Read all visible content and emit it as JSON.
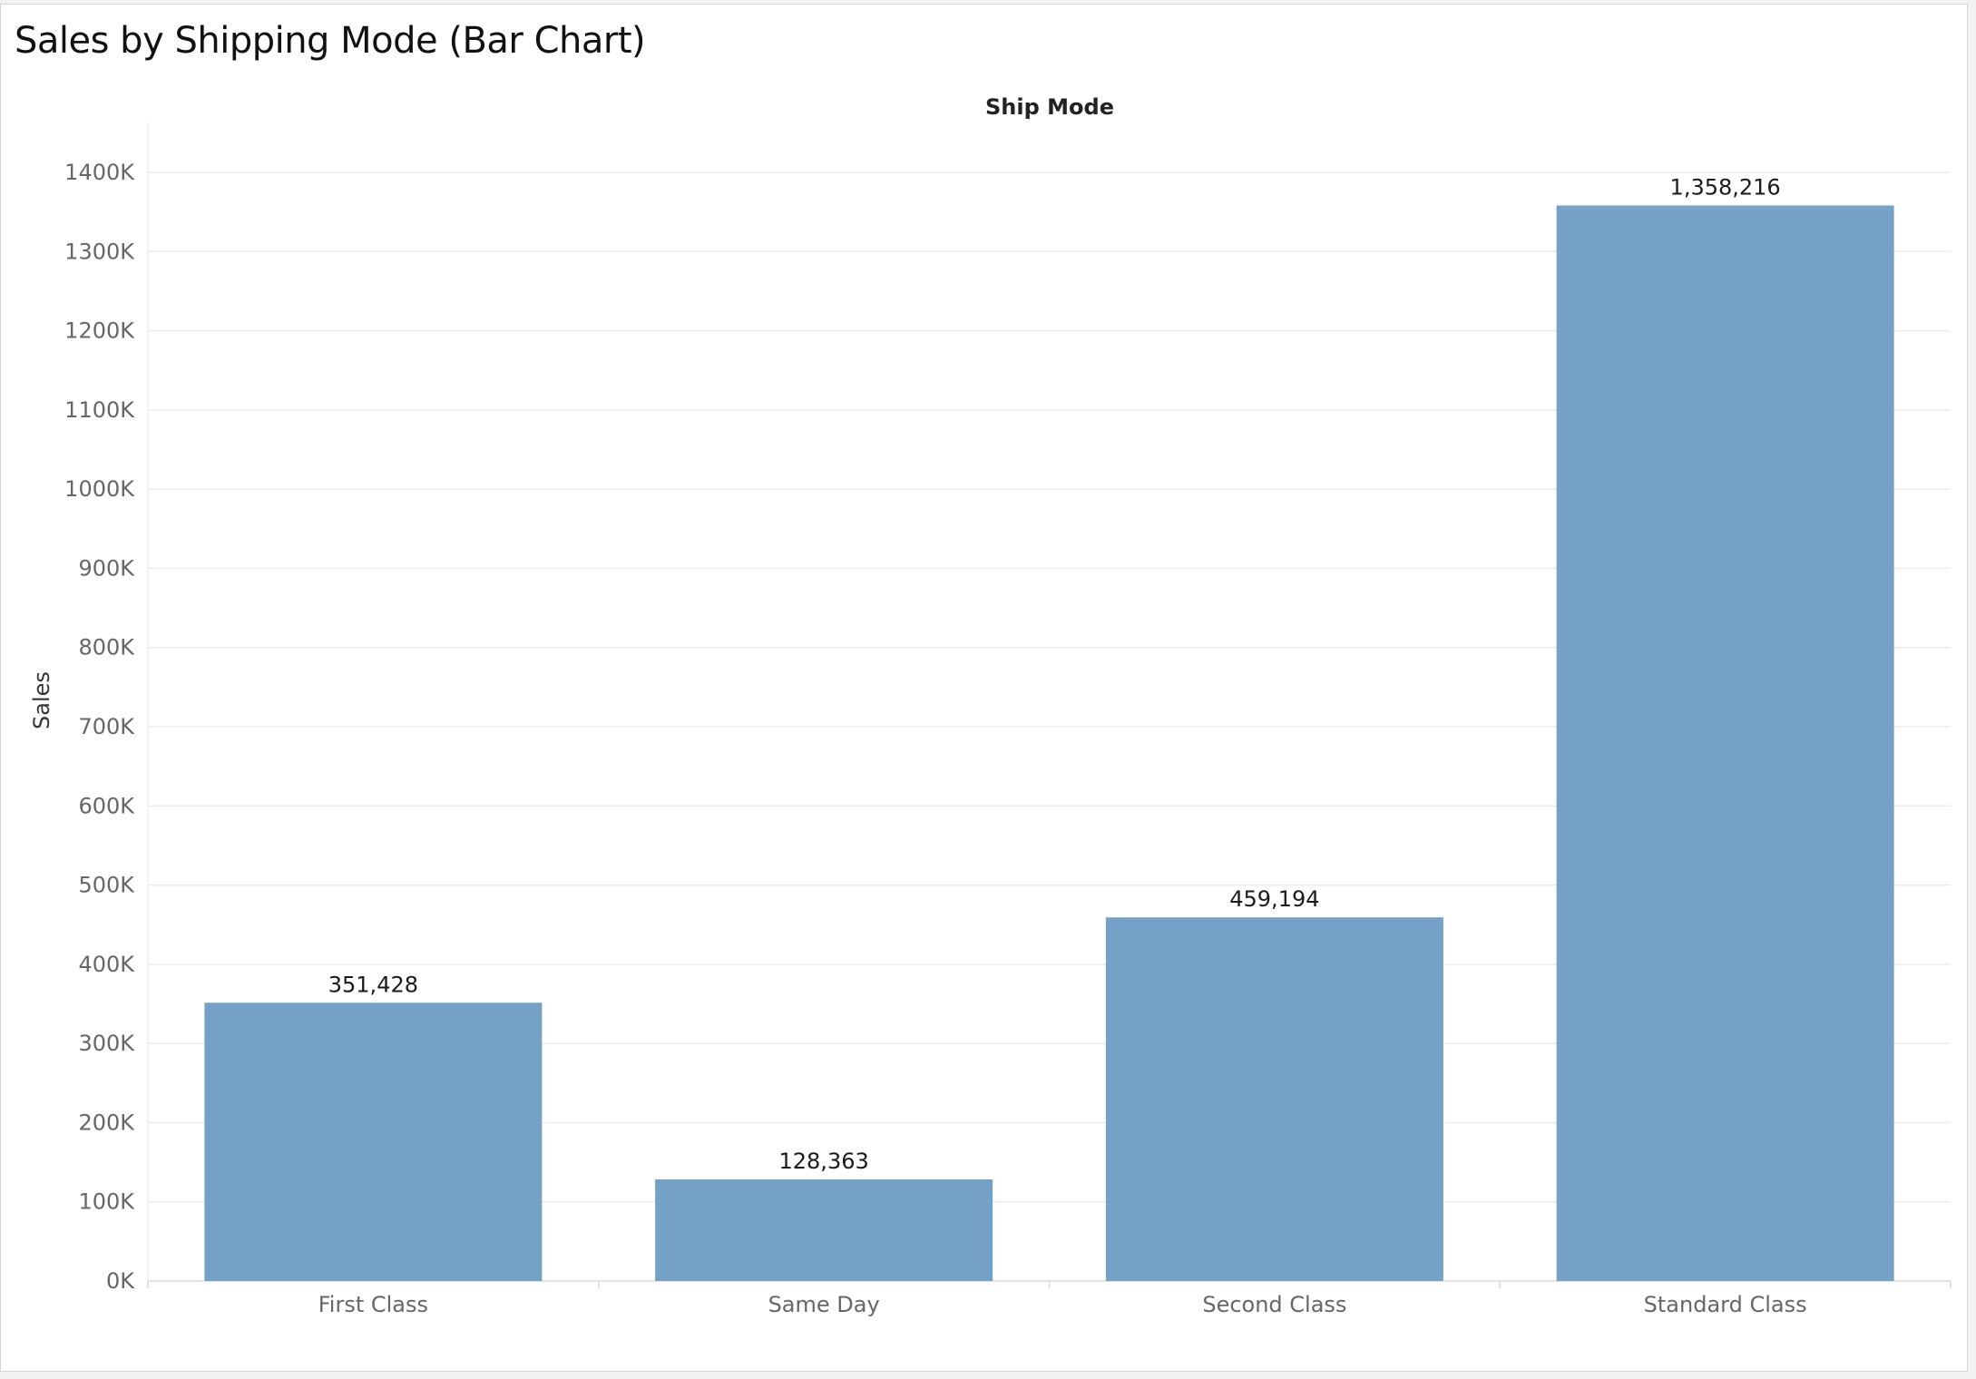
{
  "title": "Sales by Shipping Mode (Bar Chart)",
  "colors": {
    "bar": "#76a1c6",
    "grid": "#ececec",
    "axis": "#d9d9d9"
  },
  "chart_data": {
    "type": "bar",
    "title": "Sales by Shipping Mode (Bar Chart)",
    "column_header": "Ship Mode",
    "xlabel": "",
    "ylabel": "Sales",
    "categories": [
      "First Class",
      "Same Day",
      "Second Class",
      "Standard Class"
    ],
    "values": [
      351428,
      128363,
      459194,
      1358216
    ],
    "value_labels": [
      "351,428",
      "128,363",
      "459,194",
      "1,358,216"
    ],
    "ylim": [
      0,
      1400000
    ],
    "yticks": [
      0,
      100000,
      200000,
      300000,
      400000,
      500000,
      600000,
      700000,
      800000,
      900000,
      1000000,
      1100000,
      1200000,
      1300000,
      1400000
    ],
    "ytick_labels": [
      "0K",
      "100K",
      "200K",
      "300K",
      "400K",
      "500K",
      "600K",
      "700K",
      "800K",
      "900K",
      "1000K",
      "1100K",
      "1200K",
      "1300K",
      "1400K"
    ],
    "grid": true,
    "legend": "none"
  }
}
